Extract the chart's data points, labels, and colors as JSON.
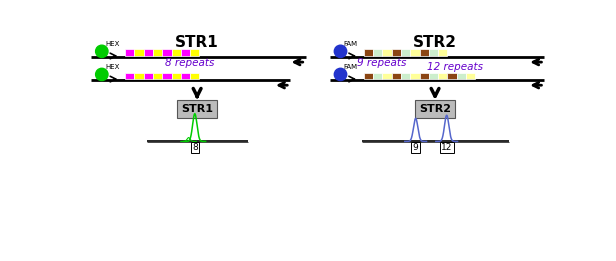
{
  "title_str1": "STR1",
  "title_str2": "STR2",
  "str1_label": "STR1",
  "str2_label": "STR2",
  "hex_color": "#00cc00",
  "fam_color": "#2233cc",
  "repeat_colors_str1": [
    "#ff00ff",
    "#ffff00",
    "#ff00ff",
    "#ffff00",
    "#ff00ff",
    "#ffff00",
    "#ff00ff",
    "#ffff00"
  ],
  "repeat_colors_str2_short": [
    "#8B4513",
    "#cceecc",
    "#ffff99",
    "#8B4513",
    "#cceecc",
    "#ffff99",
    "#8B4513",
    "#cceecc",
    "#ffff99"
  ],
  "repeat_colors_str2_long": [
    "#8B4513",
    "#cceecc",
    "#ffff99",
    "#8B4513",
    "#cceecc",
    "#ffff99",
    "#8B4513",
    "#cceecc",
    "#ffff99",
    "#8B4513",
    "#cceecc",
    "#ffff99"
  ],
  "peak_color_str1": "#00cc00",
  "peak_color_str2": "#5566cc",
  "label_8": "8 repeats",
  "label_9": "9 repeats",
  "label_12": "12 repeats",
  "box_label_8": "8",
  "box_label_9": "9",
  "box_label_12": "12"
}
